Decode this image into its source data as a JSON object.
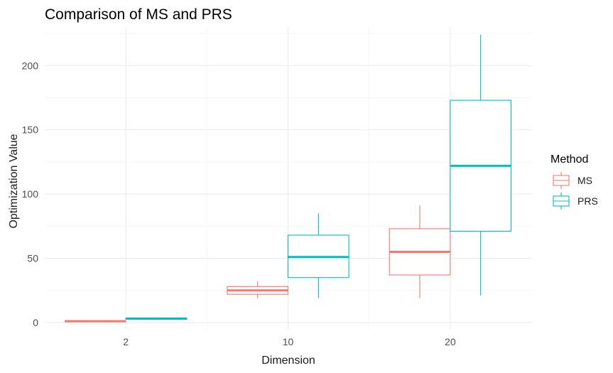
{
  "chart_data": {
    "type": "boxplot",
    "title": "Comparison of MS and PRS",
    "xlabel": "Dimension",
    "ylabel": "Optimization Value",
    "categories": [
      "2",
      "10",
      "20"
    ],
    "ylim": [
      -5,
      230
    ],
    "yticks": [
      0,
      50,
      100,
      150,
      200
    ],
    "grid": true,
    "legend": {
      "title": "Method",
      "position": "right"
    },
    "series": [
      {
        "name": "MS",
        "color": "#F8766D",
        "boxes": [
          {
            "category": "2",
            "min": 0.5,
            "q1": 0.8,
            "median": 1.0,
            "q3": 1.3,
            "max": 2.0
          },
          {
            "category": "10",
            "min": 19,
            "q1": 22,
            "median": 25,
            "q3": 28,
            "max": 32
          },
          {
            "category": "20",
            "min": 19,
            "q1": 37,
            "median": 55,
            "q3": 73,
            "max": 91
          }
        ]
      },
      {
        "name": "PRS",
        "color": "#00BFC4",
        "boxes": [
          {
            "category": "2",
            "min": 2.0,
            "q1": 2.5,
            "median": 3.0,
            "q3": 3.5,
            "max": 4.0
          },
          {
            "category": "10",
            "min": 19,
            "q1": 35,
            "median": 51,
            "q3": 68,
            "max": 85
          },
          {
            "category": "20",
            "min": 21,
            "q1": 71,
            "median": 122,
            "q3": 173,
            "max": 224
          }
        ]
      }
    ]
  }
}
